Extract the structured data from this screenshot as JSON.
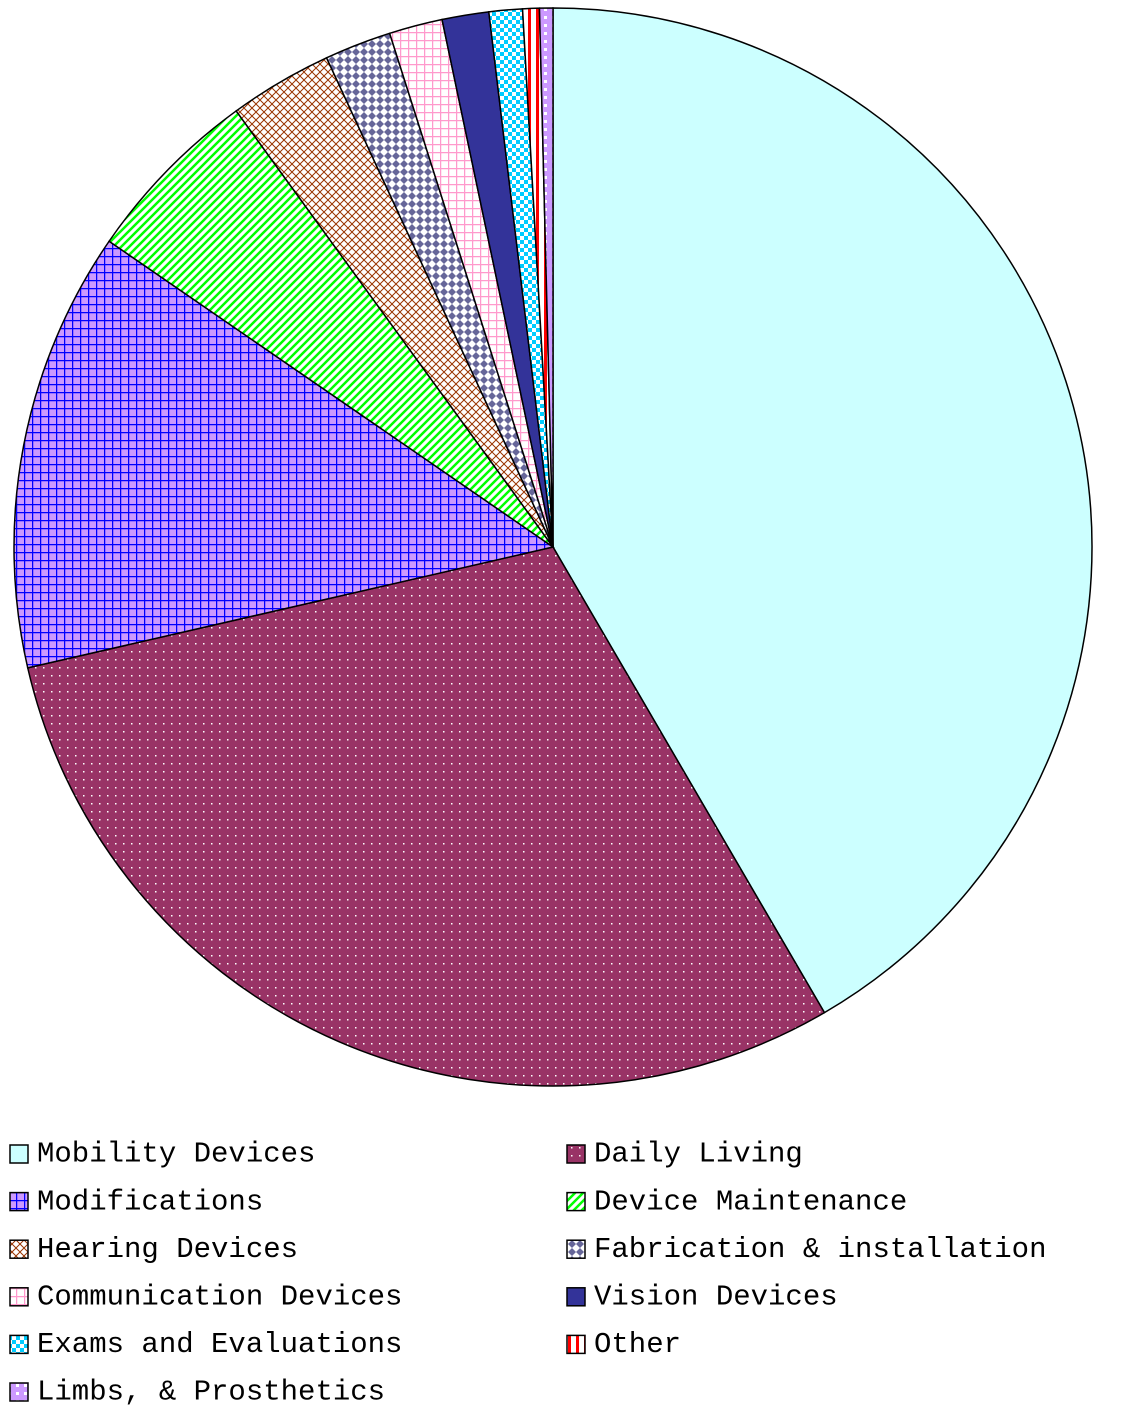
{
  "chart_data": {
    "type": "pie",
    "categories": [
      "Mobility Devices",
      "Daily Living",
      "Modifications",
      "Device Maintenance",
      "Hearing Devices",
      "Fabrication & installation",
      "Communication Devices",
      "Vision Devices",
      "Exams and Evaluations",
      "Other",
      "Limbs, & Prosthetics"
    ],
    "values": [
      41.6,
      29.8,
      13.2,
      5.4,
      3.1,
      2.0,
      1.6,
      1.4,
      1.0,
      0.5,
      0.4
    ],
    "colors": [
      "#ccffff",
      "#993366",
      "#0000ff",
      "#00ff00",
      "#993300",
      "#666699",
      "#ff99cc",
      "#333399",
      "#00ccff",
      "#ff0000",
      "#cc99ff"
    ]
  }
}
